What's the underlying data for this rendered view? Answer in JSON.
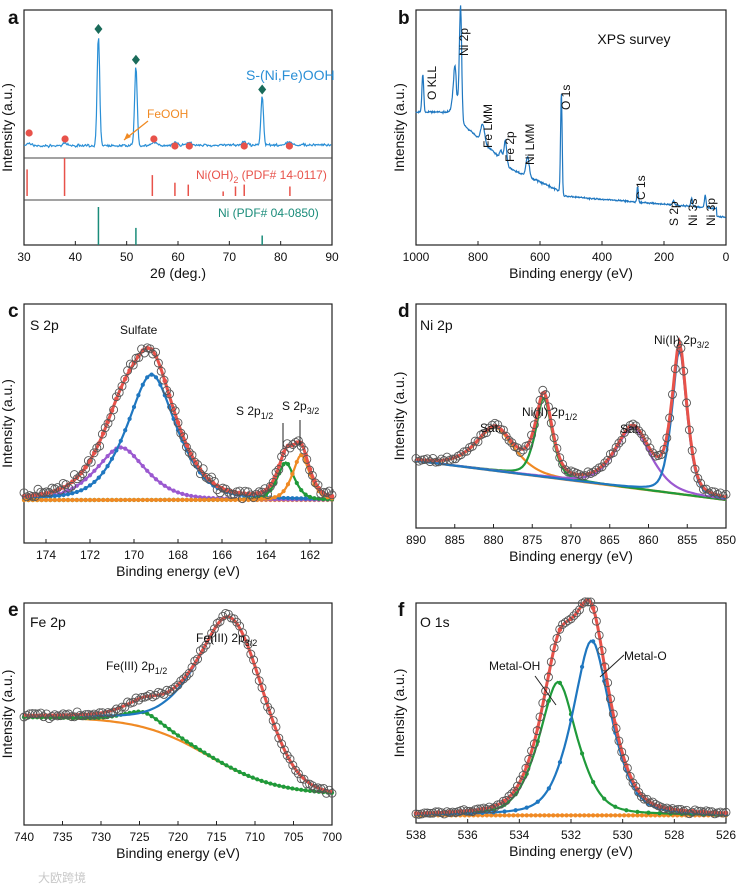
{
  "watermark": "大欧跨境",
  "colors": {
    "blue": "#1f77c0",
    "red": "#e8524a",
    "green": "#1f9a3a",
    "orange": "#f08a24",
    "purple": "#9b59d0",
    "teal": "#1a8c7a",
    "xrdblue": "#2a8fd6",
    "gray": "#555555"
  },
  "chart_data": [
    {
      "panel": "a",
      "type": "line",
      "xlabel": "2θ (deg.)",
      "ylabel": "Intensity (a.u.)",
      "xlim": [
        30,
        90
      ],
      "xticks": [
        "30",
        "40",
        "50",
        "60",
        "70",
        "80",
        "90"
      ],
      "series": [
        {
          "name": "S-(Ni,Fe)OOH",
          "color": "#2a8fd6",
          "peaks_2theta": [
            44.5,
            51.8,
            76.4
          ],
          "peak_heights": [
            1.0,
            0.72,
            0.45
          ],
          "baseline_noise": "flat noisy baseline"
        }
      ],
      "annotations": {
        "label": "S-(Ni,Fe)OOH",
        "feooh_label": "FeOOH",
        "feooh_markers_2theta": [
          31.0,
          38.0,
          55.3,
          59.4,
          62.2,
          72.9,
          81.7
        ],
        "ni_markers_2theta": [
          44.5,
          51.8,
          76.4
        ]
      },
      "references": [
        {
          "name": "Ni(OH)₂ (PDF# 14-0117)",
          "label_main": "Ni(OH)",
          "label_sub": "2",
          "label_rest": " (PDF# 14-0117)",
          "color": "#e8524a",
          "lines_2theta": [
            30.6,
            37.9,
            55.0,
            59.4,
            62.0,
            68.8,
            71.2,
            72.9,
            81.8
          ],
          "line_heights": [
            0.7,
            1.0,
            0.55,
            0.35,
            0.3,
            0.12,
            0.25,
            0.3,
            0.25
          ]
        },
        {
          "name": "Ni (PDF# 04-0850)",
          "label_main": "Ni (PDF# 04-0850)",
          "color": "#1a8c7a",
          "lines_2theta": [
            44.5,
            51.8,
            76.4
          ],
          "line_heights": [
            1.0,
            0.45,
            0.25
          ]
        }
      ]
    },
    {
      "panel": "b",
      "type": "line",
      "title": "XPS survey",
      "xlabel": "Binding energy (eV)",
      "ylabel": "Intensity (a.u.)",
      "xlim": [
        1000,
        0
      ],
      "xticks": [
        "1000",
        "800",
        "600",
        "400",
        "200",
        "0"
      ],
      "peaks": [
        {
          "name": "O KLL",
          "be": 978
        },
        {
          "name": "Ni 2p",
          "be": 856
        },
        {
          "name": "Fe LMM",
          "be": 785
        },
        {
          "name": "Fe 2p",
          "be": 712
        },
        {
          "name": "Ni LMM",
          "be": 640
        },
        {
          "name": "O 1s",
          "be": 531
        },
        {
          "name": "C 1s",
          "be": 285
        },
        {
          "name": "S 2p",
          "be": 169
        },
        {
          "name": "Ni 3s",
          "be": 111
        },
        {
          "name": "Ni 3p",
          "be": 67
        }
      ],
      "series": [
        {
          "name": "survey",
          "color": "#1f77c0"
        }
      ]
    },
    {
      "panel": "c",
      "type": "scatter",
      "title": "S 2p",
      "xlabel": "Binding energy (eV)",
      "ylabel": "Intensity (a.u.)",
      "xlim": [
        175,
        161
      ],
      "xticks": [
        "174",
        "172",
        "170",
        "168",
        "166",
        "164",
        "162"
      ],
      "annotations": {
        "sulfate": "Sulfate",
        "s2p12_main": "S 2p",
        "s2p12_sub": "1/2",
        "s2p32_main": "S 2p",
        "s2p32_sub": "3/2"
      },
      "components": [
        {
          "name": "Sulfate envelope",
          "color": "#e8524a",
          "center": 169.5,
          "height": 1.0,
          "width": 1.5
        },
        {
          "name": "Sulfate 2p3/2",
          "color": "#1f77c0",
          "center": 169.2,
          "height": 0.88,
          "width": 1.3
        },
        {
          "name": "Sulfate 2p1/2",
          "color": "#9b59d0",
          "center": 170.6,
          "height": 0.35,
          "width": 1.3
        },
        {
          "name": "S 2p1/2",
          "color": "#1f9a3a",
          "center": 163.1,
          "height": 0.25,
          "width": 0.45
        },
        {
          "name": "S 2p3/2",
          "color": "#f08a24",
          "center": 162.4,
          "height": 0.3,
          "width": 0.45
        }
      ]
    },
    {
      "panel": "d",
      "type": "scatter",
      "title": "Ni 2p",
      "xlabel": "Binding energy (eV)",
      "ylabel": "Intensity (a.u.)",
      "xlim": [
        890,
        850
      ],
      "xticks": [
        "890",
        "885",
        "880",
        "875",
        "870",
        "865",
        "860",
        "855",
        "850"
      ],
      "annotations": {
        "sat1": "Sat.",
        "ni12_main": "Ni(II) 2p",
        "ni12_sub": "1/2",
        "sat2": "Sat.",
        "ni32_main": "Ni(II) 2p",
        "ni32_sub": "3/2"
      },
      "components": [
        {
          "name": "Sat. 2p1/2",
          "color": "#f08a24",
          "center": 879.8,
          "height": 0.3,
          "width": 2.8
        },
        {
          "name": "Ni(II) 2p1/2",
          "color": "#1f9a3a",
          "center": 873.5,
          "height": 0.55,
          "width": 1.2
        },
        {
          "name": "Sat. 2p3/2",
          "color": "#9b59d0",
          "center": 862.0,
          "height": 0.42,
          "width": 2.6
        },
        {
          "name": "Ni(II) 2p3/2",
          "color": "#1f77c0",
          "center": 856.0,
          "height": 1.0,
          "width": 1.1
        }
      ]
    },
    {
      "panel": "e",
      "type": "scatter",
      "title": "Fe 2p",
      "xlabel": "Binding energy (eV)",
      "ylabel": "Intensity (a.u.)",
      "xlim": [
        740,
        700
      ],
      "xticks": [
        "740",
        "735",
        "730",
        "725",
        "720",
        "715",
        "710",
        "705",
        "700"
      ],
      "annotations": {
        "fe12_main": "Fe(III) 2p",
        "fe12_sub": "1/2",
        "fe32_main": "Fe(III) 2p",
        "fe32_sub": "3/2"
      },
      "components": [
        {
          "name": "Fe(III) 2p1/2",
          "color": "#1f9a3a",
          "center": 724.5,
          "height": 0.1,
          "width": 3.0
        },
        {
          "name": "Fe(III) 2p3/2",
          "color": "#1f77c0",
          "center": 713.2,
          "height": 1.0,
          "width": 5.0
        },
        {
          "name": "Background",
          "color": "#f08a24"
        }
      ]
    },
    {
      "panel": "f",
      "type": "scatter",
      "title": "O 1s",
      "xlabel": "Binding energy (eV)",
      "ylabel": "Intensity (a.u.)",
      "xlim": [
        538,
        526
      ],
      "xticks": [
        "538",
        "536",
        "534",
        "532",
        "530",
        "528",
        "526"
      ],
      "annotations": {
        "metal_oh": "Metal-OH",
        "metal_o": "Metal-O"
      },
      "components": [
        {
          "name": "Envelope",
          "color": "#e8524a"
        },
        {
          "name": "Metal-OH",
          "color": "#1f9a3a",
          "center": 532.5,
          "height": 0.58,
          "width": 0.85
        },
        {
          "name": "Metal-O",
          "color": "#1f77c0",
          "center": 531.2,
          "height": 0.76,
          "width": 0.85
        },
        {
          "name": "Background",
          "color": "#f08a24"
        }
      ]
    }
  ]
}
